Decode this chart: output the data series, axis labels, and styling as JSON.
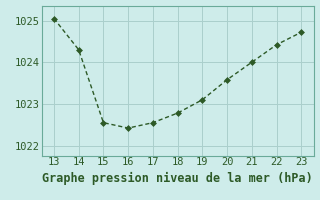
{
  "x": [
    13,
    14,
    15,
    16,
    17,
    18,
    19,
    20,
    21,
    22,
    23
  ],
  "y": [
    1025.05,
    1024.3,
    1022.55,
    1022.42,
    1022.55,
    1022.78,
    1023.1,
    1023.58,
    1024.0,
    1024.42,
    1024.72
  ],
  "line_color": "#2d5a27",
  "marker_color": "#2d5a27",
  "bg_color": "#ceecea",
  "grid_color": "#aacfcc",
  "border_color": "#6aaa99",
  "xlabel": "Graphe pression niveau de la mer (hPa)",
  "xlabel_color": "#2d5a27",
  "ytick_labels": [
    "1022",
    "1023",
    "1024",
    "1025"
  ],
  "ytick_values": [
    1022,
    1023,
    1024,
    1025
  ],
  "ylim": [
    1021.75,
    1025.35
  ],
  "xlim": [
    12.5,
    23.5
  ],
  "xticks": [
    13,
    14,
    15,
    16,
    17,
    18,
    19,
    20,
    21,
    22,
    23
  ],
  "title_fontsize": 8.5,
  "tick_fontsize": 7.5
}
